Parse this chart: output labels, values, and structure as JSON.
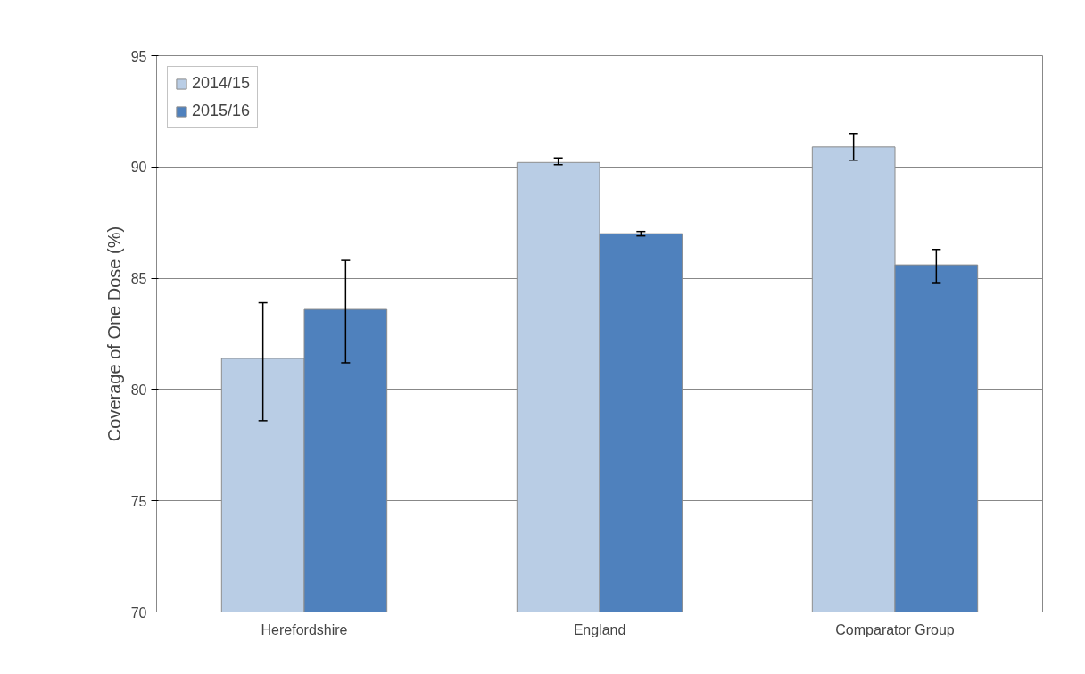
{
  "chart_data": {
    "type": "bar",
    "ylabel": "Coverage of One Dose (%)",
    "categories": [
      "Herefordshire",
      "England",
      "Comparator Group"
    ],
    "series": [
      {
        "name": "2014/15",
        "color": "#b9cde5",
        "values": [
          81.4,
          90.2,
          90.9
        ],
        "errors": [
          [
            78.6,
            83.9
          ],
          [
            90.1,
            90.4
          ],
          [
            90.3,
            91.5
          ]
        ]
      },
      {
        "name": "2015/16",
        "color": "#4f81bd",
        "values": [
          83.6,
          87.0,
          85.6
        ],
        "errors": [
          [
            81.2,
            85.8
          ],
          [
            86.9,
            87.1
          ],
          [
            84.8,
            86.3
          ]
        ]
      }
    ],
    "ylim": [
      70,
      95
    ],
    "yticks": [
      70,
      75,
      80,
      85,
      90,
      95
    ],
    "grid": "y",
    "legend": "top left"
  }
}
